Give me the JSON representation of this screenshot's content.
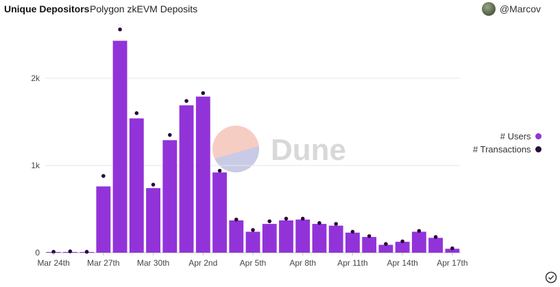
{
  "header": {
    "title": "Unique Depositors",
    "subtitle": "Polygon zkEVM Deposits",
    "username": "@Marcov",
    "avatar_icon": "user-avatar"
  },
  "watermark": {
    "text": "Dune"
  },
  "legend": {
    "users_label": "# Users",
    "transactions_label": "# Transactions"
  },
  "colors": {
    "users": "#9233d9",
    "transactions": "#2a0a3b",
    "grid": "#e6e6e6"
  },
  "chart_data": {
    "type": "bar",
    "title": "Unique Depositors",
    "xlabel": "",
    "ylabel": "",
    "ylim": [
      0,
      2600
    ],
    "y_ticks": [
      0,
      1000,
      2000
    ],
    "y_tick_labels": [
      "0",
      "1k",
      "2k"
    ],
    "x_tick_labels": [
      {
        "index": 0,
        "label": "Mar 24th"
      },
      {
        "index": 3,
        "label": "Mar 27th"
      },
      {
        "index": 6,
        "label": "Mar 30th"
      },
      {
        "index": 9,
        "label": "Apr 2nd"
      },
      {
        "index": 12,
        "label": "Apr 5th"
      },
      {
        "index": 15,
        "label": "Apr 8th"
      },
      {
        "index": 18,
        "label": "Apr 11th"
      },
      {
        "index": 21,
        "label": "Apr 14th"
      },
      {
        "index": 24,
        "label": "Apr 17th"
      }
    ],
    "categories": [
      "Mar 24th",
      "Mar 25th",
      "Mar 26th",
      "Mar 27th",
      "Mar 28th",
      "Mar 29th",
      "Mar 30th",
      "Mar 31st",
      "Apr 1st",
      "Apr 2nd",
      "Apr 3rd",
      "Apr 4th",
      "Apr 5th",
      "Apr 6th",
      "Apr 7th",
      "Apr 8th",
      "Apr 9th",
      "Apr 10th",
      "Apr 11th",
      "Apr 12th",
      "Apr 13th",
      "Apr 14th",
      "Apr 15th",
      "Apr 16th",
      "Apr 17th"
    ],
    "series": [
      {
        "name": "# Users",
        "mark": "bar",
        "values": [
          5,
          8,
          5,
          760,
          2430,
          1540,
          740,
          1290,
          1690,
          1790,
          920,
          370,
          240,
          330,
          370,
          380,
          330,
          310,
          230,
          180,
          90,
          125,
          240,
          170,
          45
        ]
      },
      {
        "name": "# Transactions",
        "mark": "point",
        "values": [
          10,
          15,
          10,
          880,
          2560,
          1600,
          780,
          1350,
          1740,
          1830,
          940,
          380,
          260,
          360,
          390,
          390,
          340,
          330,
          240,
          190,
          100,
          130,
          250,
          180,
          50
        ]
      }
    ]
  }
}
